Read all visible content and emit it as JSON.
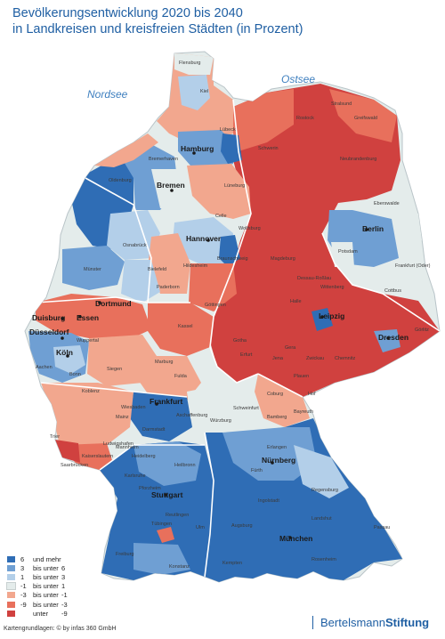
{
  "title": {
    "line1": "Bevölkerungsentwicklung 2020 bis 2040",
    "line2": "in Landkreisen und kreisfreien Städten (in Prozent)"
  },
  "seas": {
    "nordsee": "Nordsee",
    "ostsee": "Ostsee"
  },
  "cities": [
    "Hamburg",
    "Bremen",
    "Hannover",
    "Berlin",
    "Dortmund",
    "Duisburg",
    "Essen",
    "Düsseldorf",
    "Köln",
    "Leipzig",
    "Dresden",
    "Frankfurt",
    "Nürnberg",
    "Stuttgart",
    "München"
  ],
  "districts": [
    "Flensburg",
    "Lübeck",
    "Kiel",
    "Rostock",
    "Stralsund",
    "Greifswald",
    "Schwerin",
    "Bremerhaven",
    "Oldenburg",
    "Osnabrück",
    "Münster",
    "Bielefeld",
    "Paderborn",
    "Braunschweig",
    "Hildesheim",
    "Magdeburg",
    "Potsdam",
    "Halle",
    "Kassel",
    "Göttingen",
    "Erfurt",
    "Jena",
    "Chemnitz",
    "Wuppertal",
    "Aachen",
    "Bonn",
    "Koblenz",
    "Trier",
    "Mainz",
    "Wiesbaden",
    "Darmstadt",
    "Mannheim",
    "Heidelberg",
    "Saarbrücken",
    "Karlsruhe",
    "Heilbronn",
    "Würzburg",
    "Bamberg",
    "Bayreuth",
    "Regensburg",
    "Ingolstadt",
    "Augsburg",
    "Ulm",
    "Freiburg",
    "Konstanz",
    "Kempten",
    "Rosenheim",
    "Passau",
    "Landshut",
    "Celle",
    "Lüneburg",
    "Wolfsburg",
    "Frankfurt (Oder)",
    "Cottbus",
    "Görlitz",
    "Zwickau",
    "Gera",
    "Fulda",
    "Marburg",
    "Siegen",
    "Kaiserslautern",
    "Ludwigshafen",
    "Schweinfurt",
    "Aschaffenburg",
    "Tübingen",
    "Reutlingen",
    "Pforzheim",
    "Erlangen",
    "Fürth",
    "Neubrandenburg",
    "Eberswalde",
    "Dessau-Roßlau",
    "Wittenberg",
    "Gotha",
    "Plauen",
    "Hof",
    "Coburg"
  ],
  "legend": [
    {
      "a": "6",
      "b": "und mehr",
      "c": "",
      "color": "#2f6db5"
    },
    {
      "a": "3",
      "b": "bis unter",
      "c": "6",
      "color": "#6f9fd3"
    },
    {
      "a": "1",
      "b": "bis unter",
      "c": "3",
      "color": "#b3cfe9"
    },
    {
      "a": "-1",
      "b": "bis unter",
      "c": "1",
      "color": "#e4eceb"
    },
    {
      "a": "-3",
      "b": "bis unter",
      "c": "-1",
      "color": "#f2a78e"
    },
    {
      "a": "-9",
      "b": "bis unter",
      "c": "-3",
      "color": "#e8705c"
    },
    {
      "a": "",
      "b": "unter",
      "c": "-9",
      "color": "#d0413f"
    }
  ],
  "credits": "Kartengrundlagen: © by infas 360 GmbH",
  "brand": {
    "part1": "Bertelsmann",
    "part2": "Stiftung"
  }
}
